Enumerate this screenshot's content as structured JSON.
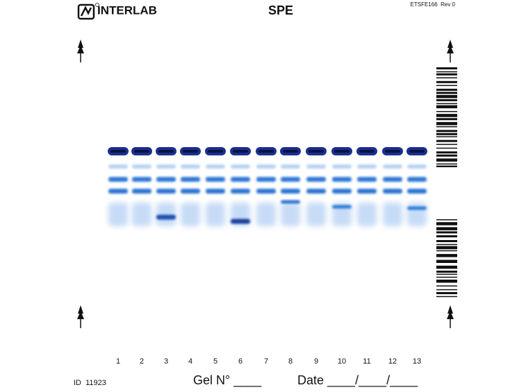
{
  "header": {
    "logo": "INTERLAB",
    "title": "SPE",
    "code": "ETSFE166  Rev 0"
  },
  "lanes": [
    "1",
    "2",
    "3",
    "4",
    "5",
    "6",
    "7",
    "8",
    "9",
    "10",
    "11",
    "12",
    "13"
  ],
  "footer": {
    "id": "ID  11923",
    "gel": "Gel N° ____",
    "date": "Date ____/____/____"
  }
}
